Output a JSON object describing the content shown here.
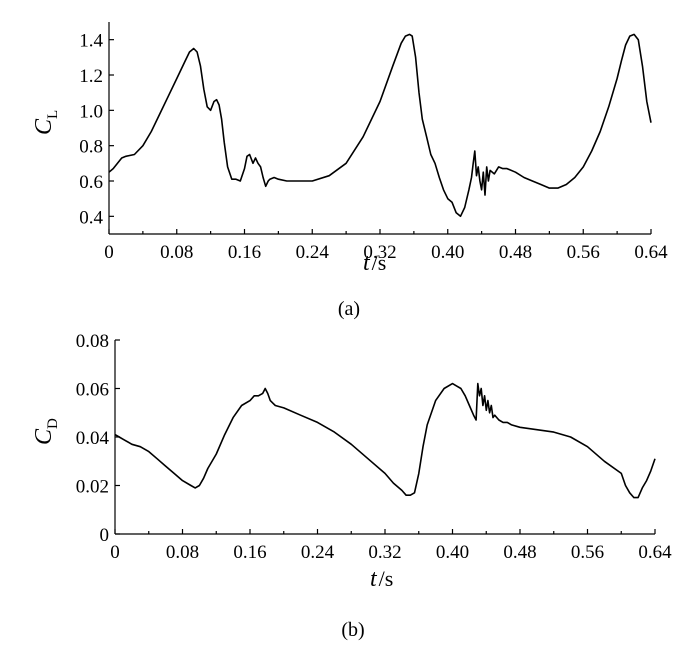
{
  "chart_data": [
    {
      "type": "line",
      "panel_label": "(a)",
      "ylabel_symbol": "C",
      "ylabel_subscript": "L",
      "xlabel_symbol": "t",
      "xlabel_unit": "/s",
      "xlim": [
        0,
        0.64
      ],
      "ylim": [
        0.3,
        1.5
      ],
      "x_ticks": [
        "0",
        "0.08",
        "0.16",
        "0.24",
        "0.32",
        "0.40",
        "0.48",
        "0.56",
        "0.64"
      ],
      "y_ticks": [
        "0.4",
        "0.6",
        "0.8",
        "1.0",
        "1.2",
        "1.4"
      ],
      "grid": false,
      "series": [
        {
          "x": [
            0,
            0.005,
            0.01,
            0.015,
            0.02,
            0.03,
            0.04,
            0.05,
            0.06,
            0.07,
            0.08,
            0.09,
            0.095,
            0.1,
            0.104,
            0.108,
            0.112,
            0.116,
            0.12,
            0.124,
            0.127,
            0.13,
            0.133,
            0.136,
            0.14,
            0.145,
            0.15,
            0.155,
            0.16,
            0.163,
            0.166,
            0.17,
            0.173,
            0.176,
            0.179,
            0.182,
            0.185,
            0.188,
            0.19,
            0.195,
            0.2,
            0.21,
            0.22,
            0.24,
            0.26,
            0.28,
            0.3,
            0.32,
            0.335,
            0.345,
            0.35,
            0.355,
            0.358,
            0.362,
            0.366,
            0.37,
            0.375,
            0.38,
            0.385,
            0.39,
            0.395,
            0.4,
            0.405,
            0.41,
            0.415,
            0.42,
            0.425,
            0.428,
            0.43,
            0.432,
            0.434,
            0.436,
            0.438,
            0.44,
            0.442,
            0.444,
            0.446,
            0.448,
            0.45,
            0.455,
            0.46,
            0.465,
            0.47,
            0.48,
            0.49,
            0.5,
            0.51,
            0.52,
            0.53,
            0.54,
            0.55,
            0.56,
            0.57,
            0.58,
            0.59,
            0.6,
            0.605,
            0.61,
            0.615,
            0.62,
            0.625,
            0.63,
            0.635,
            0.64
          ],
          "y": [
            0.65,
            0.67,
            0.7,
            0.73,
            0.74,
            0.75,
            0.8,
            0.88,
            0.98,
            1.08,
            1.18,
            1.28,
            1.33,
            1.35,
            1.33,
            1.25,
            1.12,
            1.02,
            1.0,
            1.05,
            1.06,
            1.03,
            0.95,
            0.82,
            0.68,
            0.61,
            0.61,
            0.6,
            0.67,
            0.74,
            0.75,
            0.7,
            0.73,
            0.7,
            0.68,
            0.62,
            0.57,
            0.6,
            0.61,
            0.62,
            0.61,
            0.6,
            0.6,
            0.6,
            0.63,
            0.7,
            0.85,
            1.05,
            1.25,
            1.38,
            1.42,
            1.43,
            1.42,
            1.3,
            1.1,
            0.95,
            0.85,
            0.75,
            0.7,
            0.62,
            0.55,
            0.5,
            0.48,
            0.42,
            0.4,
            0.45,
            0.55,
            0.62,
            0.7,
            0.77,
            0.63,
            0.68,
            0.6,
            0.55,
            0.65,
            0.52,
            0.68,
            0.6,
            0.66,
            0.64,
            0.68,
            0.67,
            0.67,
            0.65,
            0.62,
            0.6,
            0.58,
            0.56,
            0.56,
            0.58,
            0.62,
            0.68,
            0.77,
            0.88,
            1.02,
            1.18,
            1.28,
            1.37,
            1.42,
            1.43,
            1.4,
            1.25,
            1.05,
            0.93
          ]
        }
      ]
    },
    {
      "type": "line",
      "panel_label": "(b)",
      "ylabel_symbol": "C",
      "ylabel_subscript": "D",
      "xlabel_symbol": "t",
      "xlabel_unit": "/s",
      "xlim": [
        0,
        0.64
      ],
      "ylim": [
        0,
        0.08
      ],
      "x_ticks": [
        "0",
        "0.08",
        "0.16",
        "0.24",
        "0.32",
        "0.40",
        "0.48",
        "0.56",
        "0.64"
      ],
      "y_ticks": [
        "0",
        "0.02",
        "0.04",
        "0.06",
        "0.08"
      ],
      "grid": false,
      "series": [
        {
          "x": [
            0,
            0.005,
            0.01,
            0.02,
            0.03,
            0.04,
            0.05,
            0.06,
            0.07,
            0.08,
            0.09,
            0.095,
            0.1,
            0.105,
            0.11,
            0.12,
            0.13,
            0.14,
            0.15,
            0.16,
            0.165,
            0.17,
            0.175,
            0.178,
            0.181,
            0.184,
            0.187,
            0.19,
            0.2,
            0.22,
            0.24,
            0.26,
            0.28,
            0.3,
            0.32,
            0.33,
            0.34,
            0.345,
            0.35,
            0.355,
            0.36,
            0.365,
            0.37,
            0.38,
            0.39,
            0.4,
            0.405,
            0.41,
            0.415,
            0.42,
            0.425,
            0.428,
            0.43,
            0.432,
            0.434,
            0.436,
            0.438,
            0.44,
            0.442,
            0.444,
            0.446,
            0.448,
            0.45,
            0.455,
            0.46,
            0.465,
            0.47,
            0.48,
            0.5,
            0.52,
            0.54,
            0.56,
            0.58,
            0.6,
            0.605,
            0.61,
            0.615,
            0.62,
            0.625,
            0.63,
            0.635,
            0.64
          ],
          "y": [
            0.041,
            0.04,
            0.039,
            0.037,
            0.036,
            0.034,
            0.031,
            0.028,
            0.025,
            0.022,
            0.02,
            0.019,
            0.02,
            0.023,
            0.027,
            0.033,
            0.041,
            0.048,
            0.053,
            0.055,
            0.057,
            0.057,
            0.058,
            0.06,
            0.058,
            0.055,
            0.054,
            0.053,
            0.052,
            0.049,
            0.046,
            0.042,
            0.037,
            0.031,
            0.025,
            0.021,
            0.018,
            0.016,
            0.016,
            0.017,
            0.025,
            0.036,
            0.045,
            0.055,
            0.06,
            0.062,
            0.061,
            0.06,
            0.057,
            0.053,
            0.049,
            0.047,
            0.062,
            0.057,
            0.06,
            0.053,
            0.057,
            0.051,
            0.055,
            0.05,
            0.053,
            0.048,
            0.049,
            0.047,
            0.046,
            0.046,
            0.045,
            0.044,
            0.043,
            0.042,
            0.04,
            0.036,
            0.03,
            0.025,
            0.02,
            0.017,
            0.015,
            0.015,
            0.019,
            0.022,
            0.026,
            0.031
          ]
        }
      ]
    }
  ]
}
